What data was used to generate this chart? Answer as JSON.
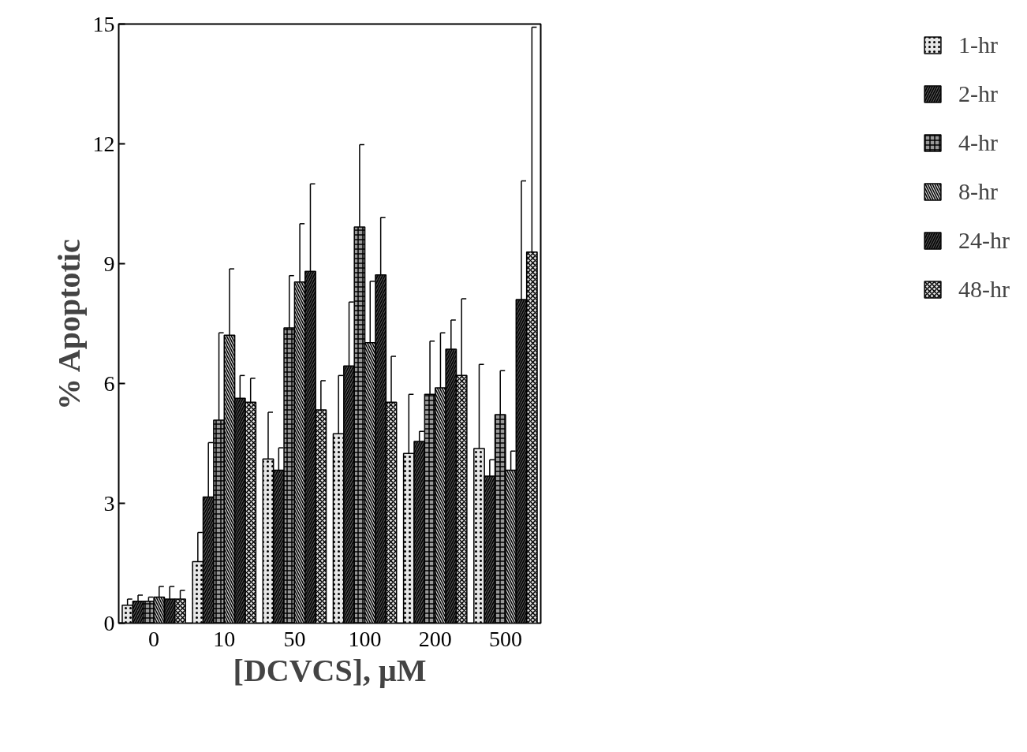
{
  "chart_data": {
    "type": "bar",
    "xlabel": "[DCVCS], μM",
    "ylabel": "% Apoptotic",
    "categories": [
      "0",
      "10",
      "50",
      "100",
      "200",
      "500"
    ],
    "ylim": [
      0,
      15
    ],
    "yticks": [
      0,
      3,
      6,
      9,
      12,
      15
    ],
    "grid": false,
    "legend": "right",
    "series": [
      {
        "name": "1-hr",
        "color": "#e6e6e6",
        "values": [
          0.45,
          1.54,
          4.11,
          4.74,
          4.25,
          4.37
        ],
        "errors": [
          [
            0.45,
            0.6
          ],
          [
            1.54,
            2.27
          ],
          [
            4.11,
            5.28
          ],
          [
            4.74,
            6.2
          ],
          [
            4.25,
            5.73
          ],
          [
            4.37,
            6.48
          ]
        ]
      },
      {
        "name": "2-hr",
        "color": "#555555",
        "values": [
          0.55,
          3.16,
          3.83,
          6.44,
          4.55,
          3.68
        ],
        "errors": [
          [
            0.55,
            0.7
          ],
          [
            3.16,
            4.52
          ],
          [
            3.83,
            4.39
          ],
          [
            6.44,
            8.04
          ],
          [
            4.55,
            4.8
          ],
          [
            3.68,
            4.09
          ]
        ]
      },
      {
        "name": "4-hr",
        "color": "#999999",
        "values": [
          0.55,
          5.08,
          7.39,
          9.92,
          5.73,
          5.22
        ],
        "errors": [
          [
            0.55,
            0.65
          ],
          [
            5.08,
            7.27
          ],
          [
            7.39,
            8.7
          ],
          [
            9.92,
            11.98
          ],
          [
            5.73,
            7.06
          ],
          [
            5.22,
            6.32
          ]
        ]
      },
      {
        "name": "8-hr",
        "color": "#d9d9d9",
        "values": [
          0.65,
          7.21,
          8.54,
          7.02,
          5.89,
          3.83
        ],
        "errors": [
          [
            0.65,
            0.92
          ],
          [
            7.21,
            8.87
          ],
          [
            8.54,
            10.0
          ],
          [
            7.02,
            8.56
          ],
          [
            5.89,
            7.27
          ],
          [
            3.83,
            4.31
          ]
        ]
      },
      {
        "name": "24-hr",
        "color": "#4d4d4d",
        "values": [
          0.6,
          5.63,
          8.81,
          8.72,
          6.86,
          8.1
        ],
        "errors": [
          [
            0.6,
            0.92
          ],
          [
            5.63,
            6.2
          ],
          [
            8.81,
            11.0
          ],
          [
            8.72,
            10.16
          ],
          [
            6.86,
            7.59
          ],
          [
            8.1,
            11.07
          ]
        ]
      },
      {
        "name": "48-hr",
        "color": "#e0e0e0",
        "values": [
          0.6,
          5.53,
          5.34,
          5.53,
          6.2,
          9.29
        ],
        "errors": [
          [
            0.6,
            0.82
          ],
          [
            5.53,
            6.13
          ],
          [
            5.34,
            6.07
          ],
          [
            5.53,
            6.68
          ],
          [
            6.2,
            8.12
          ],
          [
            9.29,
            14.92
          ]
        ]
      }
    ]
  }
}
